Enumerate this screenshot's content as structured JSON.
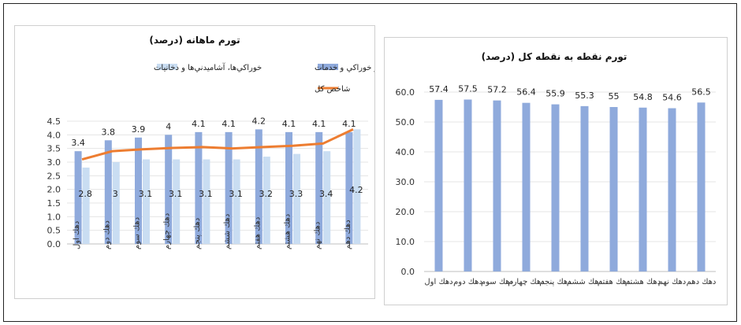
{
  "chart_data": [
    {
      "type": "bar",
      "title": "تورم ماهانه (درصد)",
      "categories": [
        "دهك اول",
        "دهك دوم",
        "دهك سوم",
        "دهك چهارم",
        "دهك پنجم",
        "دهك ششم",
        "دهك هفتم",
        "دهك هشتم",
        "دهك نهم",
        "دهك دهم"
      ],
      "series": [
        {
          "name": "كالاهاي غير خوراكي و خدمات",
          "kind": "bar",
          "color": "#8FAADC",
          "values": [
            3.4,
            3.8,
            3.9,
            4.0,
            4.1,
            4.1,
            4.2,
            4.1,
            4.1,
            4.1
          ]
        },
        {
          "name": "خوراكي‌ها، آشاميدني‌ها و دخانيات",
          "kind": "bar",
          "color": "#C9DDF2",
          "values": [
            2.8,
            3.0,
            3.1,
            3.1,
            3.1,
            3.1,
            3.2,
            3.3,
            3.4,
            4.2
          ]
        },
        {
          "name": "شاخص كل",
          "kind": "line",
          "color": "#ED7D31",
          "values": [
            3.1,
            3.4,
            3.47,
            3.52,
            3.55,
            3.5,
            3.55,
            3.6,
            3.68,
            4.2
          ]
        }
      ],
      "yticks": [
        "0.0",
        "0.5",
        "1.0",
        "1.5",
        "2.0",
        "2.5",
        "3.0",
        "3.5",
        "4.0",
        "4.5"
      ],
      "ylim": [
        0,
        4.5
      ],
      "grid": true,
      "legend": "top"
    },
    {
      "type": "bar",
      "title": "تورم نقطه به نقطه كل (درصد)",
      "categories": [
        "دهك اول",
        "دهك دوم",
        "دهك سوم",
        "دهك چهارم",
        "دهك پنجم",
        "دهك ششم",
        "دهك هفتم",
        "دهك هشتم",
        "دهك نهم",
        "دهك دهم"
      ],
      "series": [
        {
          "kind": "bar",
          "color": "#8FAADC",
          "values": [
            57.4,
            57.5,
            57.2,
            56.4,
            55.9,
            55.3,
            55.0,
            54.8,
            54.6,
            56.5
          ]
        }
      ],
      "yticks": [
        "0.0",
        "10.0",
        "20.0",
        "30.0",
        "40.0",
        "50.0",
        "60.0"
      ],
      "ylim": [
        0,
        60
      ],
      "grid": true
    }
  ]
}
